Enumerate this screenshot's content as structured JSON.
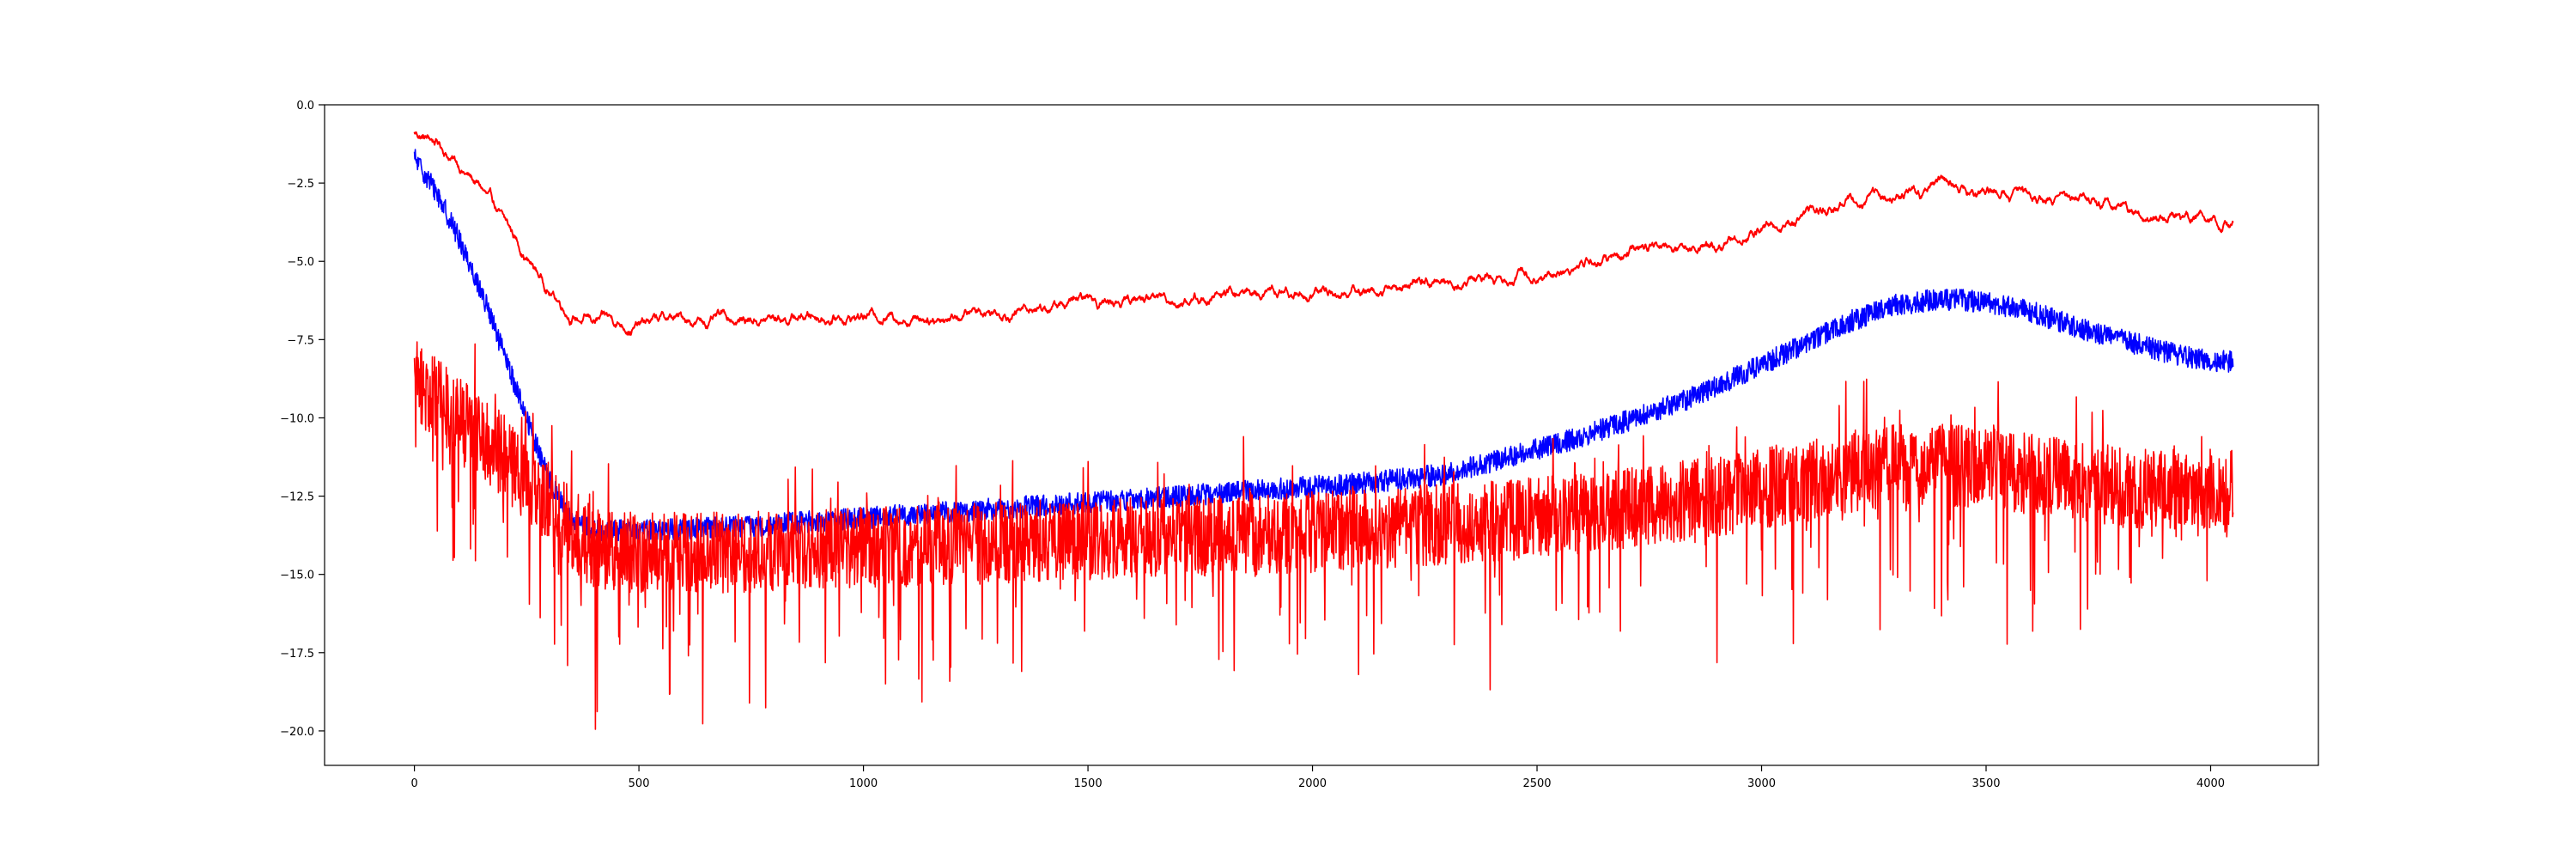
{
  "chart_data": {
    "type": "line",
    "title": "",
    "xlabel": "",
    "ylabel": "",
    "xlim": [
      -200,
      4240
    ],
    "ylim": [
      -21.1,
      0
    ],
    "x_ticks": [
      0,
      500,
      1000,
      1500,
      2000,
      2500,
      3000,
      3500,
      4000
    ],
    "y_ticks": [
      0.0,
      -2.5,
      -5.0,
      -7.5,
      -10.0,
      -12.5,
      -15.0,
      -17.5,
      -20.0
    ],
    "x_tick_labels": [
      "0",
      "500",
      "1000",
      "1500",
      "2000",
      "2500",
      "3000",
      "3500",
      "4000"
    ],
    "y_tick_labels": [
      "0.0",
      "−2.5",
      "−5.0",
      "−7.5",
      "−10.0",
      "−12.5",
      "−15.0",
      "−17.5",
      "−20.0"
    ],
    "grid": false,
    "legend": "none",
    "series": [
      {
        "color": "#ff0000",
        "style": "smooth",
        "n_points": 4050,
        "noise": 0.15,
        "x": [
          0,
          50,
          100,
          150,
          200,
          250,
          300,
          350,
          400,
          450,
          500,
          550,
          600,
          700,
          800,
          900,
          1000,
          1200,
          1400,
          1600,
          1800,
          2000,
          2200,
          2400,
          2600,
          2800,
          3000,
          3100,
          3200,
          3300,
          3350,
          3400,
          3500,
          3600,
          3700,
          3800,
          3900,
          4000,
          4050
        ],
        "values": [
          -0.9,
          -1.2,
          -1.9,
          -2.7,
          -3.9,
          -4.9,
          -5.9,
          -6.6,
          -6.9,
          -7.0,
          -7.0,
          -6.9,
          -6.9,
          -6.9,
          -6.8,
          -6.7,
          -6.7,
          -6.6,
          -6.4,
          -6.2,
          -6.1,
          -6.0,
          -5.8,
          -5.5,
          -5.1,
          -4.6,
          -4.0,
          -3.6,
          -3.2,
          -2.9,
          -2.8,
          -2.7,
          -2.8,
          -2.9,
          -3.1,
          -3.3,
          -3.5,
          -3.8,
          -3.8
        ]
      },
      {
        "color": "#0000ff",
        "style": "noisy",
        "n_points": 4050,
        "noise": 0.35,
        "x": [
          0,
          50,
          100,
          150,
          200,
          250,
          300,
          350,
          400,
          500,
          700,
          900,
          1100,
          1300,
          1500,
          1700,
          1900,
          2100,
          2300,
          2400,
          2500,
          2600,
          2700,
          2800,
          2900,
          3000,
          3100,
          3200,
          3300,
          3400,
          3500,
          3600,
          3700,
          3800,
          3900,
          4000,
          4050
        ],
        "values": [
          -1.7,
          -2.8,
          -4.3,
          -6.0,
          -8.0,
          -10.0,
          -12.0,
          -13.3,
          -13.6,
          -13.6,
          -13.5,
          -13.3,
          -13.1,
          -12.9,
          -12.7,
          -12.5,
          -12.3,
          -12.1,
          -11.8,
          -11.4,
          -11.0,
          -10.6,
          -10.1,
          -9.6,
          -9.0,
          -8.3,
          -7.6,
          -6.9,
          -6.4,
          -6.2,
          -6.3,
          -6.6,
          -7.1,
          -7.5,
          -7.9,
          -8.2,
          -8.2
        ]
      },
      {
        "color": "#ff0000",
        "style": "spiky",
        "n_points": 4050,
        "noise": 1.3,
        "x": [
          0,
          50,
          100,
          150,
          200,
          250,
          300,
          350,
          400,
          500,
          700,
          900,
          1100,
          1300,
          1500,
          1700,
          1900,
          2100,
          2300,
          2500,
          2700,
          2900,
          3100,
          3300,
          3400,
          3500,
          3600,
          3700,
          3800,
          3900,
          4000,
          4050
        ],
        "values": [
          -8.8,
          -9.4,
          -10.0,
          -10.6,
          -11.3,
          -12.0,
          -12.7,
          -13.5,
          -14.2,
          -14.3,
          -14.3,
          -14.2,
          -14.1,
          -14.0,
          -13.9,
          -13.8,
          -13.7,
          -13.6,
          -13.4,
          -13.2,
          -12.9,
          -12.5,
          -12.0,
          -11.5,
          -11.5,
          -11.6,
          -11.8,
          -12.0,
          -12.2,
          -12.3,
          -12.3,
          -12.3
        ]
      }
    ]
  }
}
